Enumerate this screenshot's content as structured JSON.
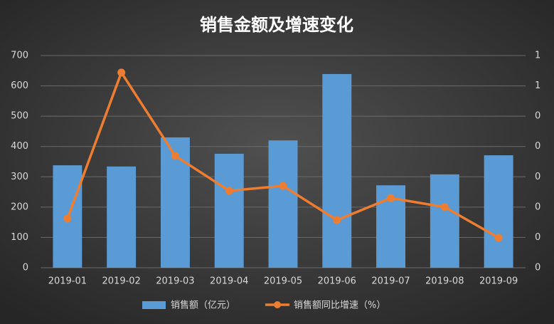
{
  "chart_data": {
    "type": "bar",
    "title": "销售金额及增速变化",
    "categories": [
      "2019-01",
      "2019-02",
      "2019-03",
      "2019-04",
      "2019-05",
      "2019-06",
      "2019-07",
      "2019-08",
      "2019-09"
    ],
    "series": [
      {
        "name": "销售额（亿元）",
        "type": "bar",
        "color": "#5b9bd5",
        "values": [
          338,
          334,
          430,
          376,
          420,
          639,
          272,
          308,
          371
        ]
      },
      {
        "name": "销售额同比增速（%）",
        "type": "line",
        "axis": "y2",
        "color": "#ed7d31",
        "values": [
          0.162,
          0.644,
          0.369,
          0.254,
          0.27,
          0.157,
          0.23,
          0.2,
          0.099
        ]
      }
    ],
    "ylim": [
      0,
      700
    ],
    "yticks": [
      0,
      100,
      200,
      300,
      400,
      500,
      600,
      700
    ],
    "y2lim": [
      0,
      0.7
    ],
    "y2ticks": [
      {
        "value": 0,
        "label": "0"
      },
      {
        "value": 0.1,
        "label": "0"
      },
      {
        "value": 0.2,
        "label": "0"
      },
      {
        "value": 0.3,
        "label": "0"
      },
      {
        "value": 0.4,
        "label": "0"
      },
      {
        "value": 0.5,
        "label": "0"
      },
      {
        "value": 0.6,
        "label": "1"
      },
      {
        "value": 0.7,
        "label": "1"
      }
    ],
    "grid": true
  }
}
